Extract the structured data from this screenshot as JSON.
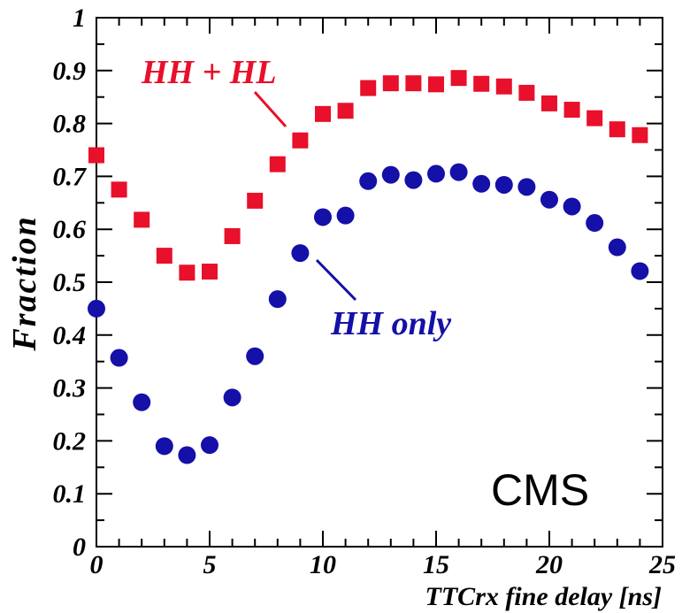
{
  "chart_data": {
    "type": "scatter",
    "xlabel": "TTCrx fine delay  [ns]",
    "ylabel": "Fraction",
    "xlim": [
      0,
      25
    ],
    "ylim": [
      0,
      1
    ],
    "x_ticks": [
      "0",
      "5",
      "10",
      "15",
      "20",
      "25"
    ],
    "y_ticks": [
      "0",
      "0.1",
      "0.2",
      "0.3",
      "0.4",
      "0.5",
      "0.6",
      "0.7",
      "0.8",
      "0.9",
      "1"
    ],
    "grid": false,
    "series": [
      {
        "name": "HH + HL",
        "marker": "square",
        "color": "#e8102a",
        "x": [
          0,
          1,
          2,
          3,
          4,
          5,
          6,
          7,
          8,
          9,
          10,
          11,
          12,
          13,
          14,
          15,
          16,
          17,
          18,
          19,
          20,
          21,
          22,
          23,
          24
        ],
        "y": [
          0.74,
          0.675,
          0.618,
          0.55,
          0.518,
          0.52,
          0.587,
          0.654,
          0.723,
          0.768,
          0.818,
          0.824,
          0.867,
          0.876,
          0.876,
          0.874,
          0.886,
          0.875,
          0.87,
          0.858,
          0.838,
          0.826,
          0.81,
          0.789,
          0.778
        ]
      },
      {
        "name": "HH only",
        "marker": "circle",
        "color": "#1410a8",
        "x": [
          0,
          1,
          2,
          3,
          4,
          5,
          6,
          7,
          8,
          9,
          10,
          11,
          12,
          13,
          14,
          15,
          16,
          17,
          18,
          19,
          20,
          21,
          22,
          23,
          24
        ],
        "y": [
          0.45,
          0.357,
          0.273,
          0.19,
          0.173,
          0.192,
          0.282,
          0.36,
          0.468,
          0.555,
          0.623,
          0.626,
          0.691,
          0.703,
          0.693,
          0.705,
          0.708,
          0.686,
          0.684,
          0.68,
          0.656,
          0.643,
          0.612,
          0.566,
          0.521
        ]
      }
    ],
    "annotations": [
      {
        "text": "HH + HL",
        "color": "#e8102a"
      },
      {
        "text": "HH only",
        "color": "#1410a8"
      },
      {
        "text": "CMS",
        "color": "#000000"
      }
    ]
  }
}
